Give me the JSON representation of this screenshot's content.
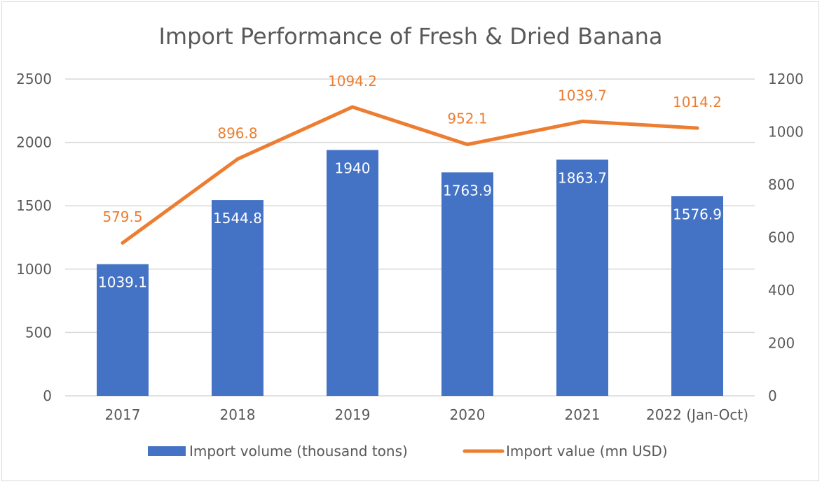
{
  "chart_data": {
    "type": "bar+line",
    "title": "Import Performance of Fresh & Dried Banana",
    "categories": [
      "2017",
      "2018",
      "2019",
      "2020",
      "2021",
      "2022 (Jan-Oct)"
    ],
    "series": [
      {
        "name": "Import volume (thousand tons)",
        "type": "bar",
        "axis": "left",
        "color": "#4472c4",
        "values": [
          1039.1,
          1544.8,
          1940,
          1763.9,
          1863.7,
          1576.9
        ],
        "labels": [
          "1039.1",
          "1544.8",
          "1940",
          "1763.9",
          "1863.7",
          "1576.9"
        ]
      },
      {
        "name": "Import value (mn USD)",
        "type": "line",
        "axis": "right",
        "color": "#ed7d31",
        "values": [
          579.5,
          896.8,
          1094.2,
          952.1,
          1039.7,
          1014.2
        ],
        "labels": [
          "579.5",
          "896.8",
          "1094.2",
          "952.1",
          "1039.7",
          "1014.2"
        ]
      }
    ],
    "y_left": {
      "ylim": [
        0,
        2500
      ],
      "ticks": [
        "0",
        "500",
        "1000",
        "1500",
        "2000",
        "2500"
      ]
    },
    "y_right": {
      "ylim": [
        0,
        1200
      ],
      "ticks": [
        "0",
        "200",
        "400",
        "600",
        "800",
        "1000",
        "1200"
      ]
    },
    "grid": true,
    "legend_position": "bottom"
  }
}
